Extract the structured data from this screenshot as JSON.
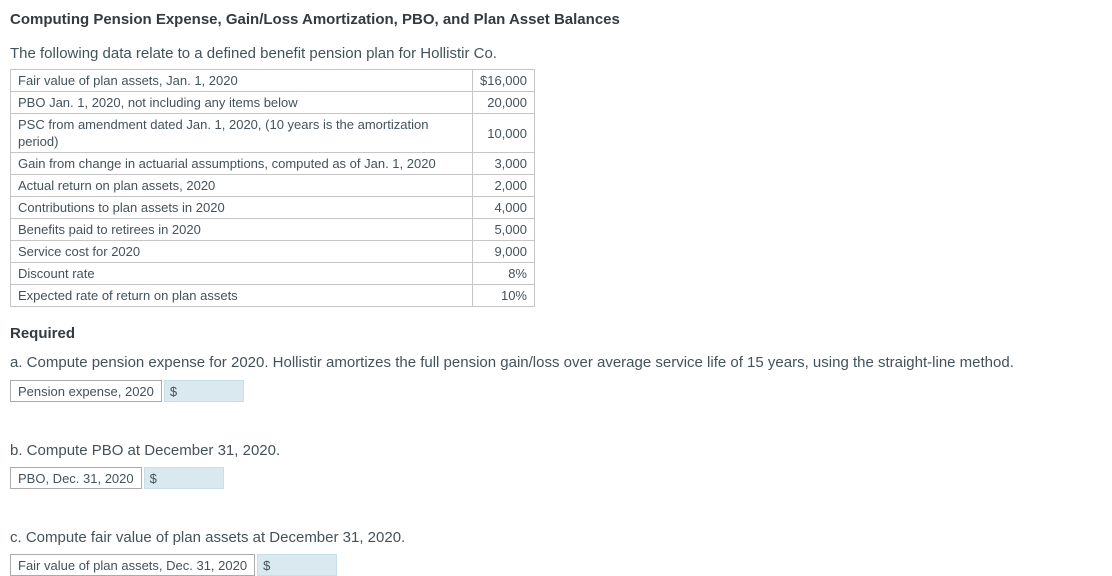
{
  "page": {
    "title": "Computing Pension Expense, Gain/Loss Amortization, PBO, and Plan Asset Balances",
    "intro": "The following data relate to a defined benefit pension plan for Hollistir Co."
  },
  "data_table": {
    "rows": [
      {
        "label": "Fair value of plan assets, Jan. 1, 2020",
        "value": "$16,000"
      },
      {
        "label": "PBO Jan. 1, 2020, not including any items below",
        "value": "20,000"
      },
      {
        "label": "PSC from amendment dated Jan. 1, 2020, (10 years is the amortization period)",
        "value": "10,000"
      },
      {
        "label": "Gain from change in actuarial assumptions, computed as of Jan. 1, 2020",
        "value": "3,000"
      },
      {
        "label": "Actual return on plan assets, 2020",
        "value": "2,000"
      },
      {
        "label": "Contributions to plan assets in 2020",
        "value": "4,000"
      },
      {
        "label": "Benefits paid to retirees in 2020",
        "value": "5,000"
      },
      {
        "label": "Service cost for 2020",
        "value": "9,000"
      },
      {
        "label": "Discount rate",
        "value": "8%"
      },
      {
        "label": "Expected rate of return on plan assets",
        "value": "10%"
      }
    ]
  },
  "required": {
    "heading": "Required",
    "parts": [
      {
        "instruction": "a. Compute pension expense for 2020. Hollistir amortizes the full pension gain/loss over average service life of 15 years, using the straight-line method.",
        "answer_label": "Pension expense, 2020",
        "currency_symbol": "$",
        "input_value": ""
      },
      {
        "instruction": "b. Compute PBO at December 31, 2020.",
        "answer_label": "PBO, Dec. 31, 2020",
        "currency_symbol": "$",
        "input_value": ""
      },
      {
        "instruction": "c. Compute fair value of plan assets at December 31, 2020.",
        "answer_label": "Fair value of plan assets, Dec. 31, 2020",
        "currency_symbol": "$",
        "input_value": ""
      }
    ]
  },
  "colors": {
    "text": "#44525a",
    "heading": "#343b40",
    "table_border": "#c6c6c6",
    "answer_cell_border": "#ababab",
    "input_background": "#d9e9ef",
    "input_border": "#c9dfe8"
  }
}
